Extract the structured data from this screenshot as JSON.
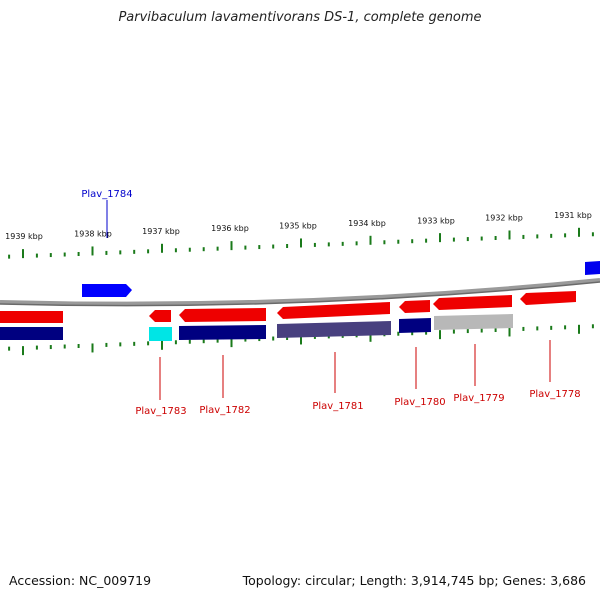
{
  "title": "Parvibaculum lavamentivorans DS-1, complete genome",
  "footer": {
    "accession": "Accession: NC_009719",
    "topology": "Topology: circular; Length: 3,914,745 bp; Genes: 3,686"
  },
  "ruler_labels": [
    "1939 kbp",
    "1938 kbp",
    "1937 kbp",
    "1936 kbp",
    "1935 kbp",
    "1934 kbp",
    "1933 kbp",
    "1932 kbp",
    "1931 kbp"
  ],
  "colors": {
    "forward_gene": "#ff0000",
    "reverse_gene": "#e60000",
    "forward_highlight": "#0000ff",
    "navy_track": "#000080",
    "slate_track": "#48407f",
    "cyan_track": "#00e5e5",
    "gray_track": "#b8b8b8",
    "tick": "#1a7a1a",
    "backbone": "#8a8a8a",
    "label_blue": "#0000cc",
    "label_red": "#cc0000"
  },
  "gene_labels": {
    "top": [
      "Plav_1784"
    ],
    "bottom": [
      "Plav_1783",
      "Plav_1782",
      "Plav_1781",
      "Plav_1780",
      "Plav_1779",
      "Plav_1778"
    ]
  }
}
